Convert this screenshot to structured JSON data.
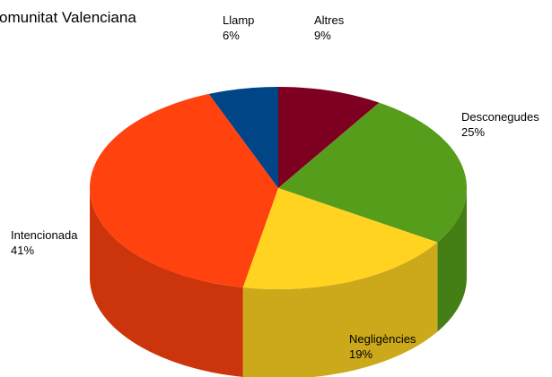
{
  "chart_data": {
    "type": "pie3d",
    "title": "omunitat Valenciana",
    "categories": [
      "Altres",
      "Desconegudes",
      "Negligències",
      "Intencionada",
      "Llamp"
    ],
    "values": [
      9,
      25,
      19,
      41,
      6
    ],
    "value_labels": [
      "9%",
      "25%",
      "19%",
      "41%",
      "6%"
    ],
    "colors": [
      "#7e0021",
      "#579d1c",
      "#ffd320",
      "#ff420e",
      "#004586"
    ]
  }
}
